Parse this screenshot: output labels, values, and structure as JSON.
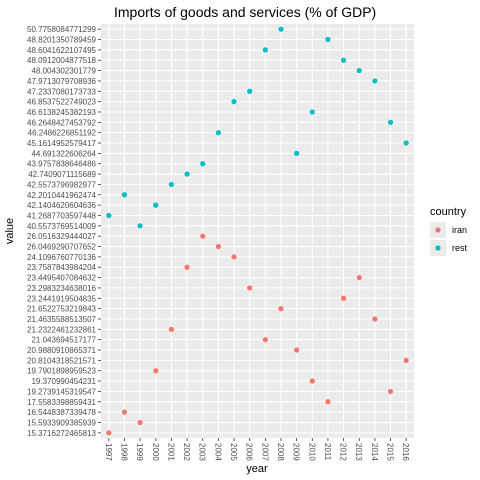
{
  "chart_data": {
    "type": "scatter",
    "title": "Imports of goods and services (% of GDP)",
    "xlabel": "year",
    "ylabel": "value",
    "y_scale": "discrete-categorical",
    "grid": true,
    "legend": {
      "title": "country",
      "placement": "right"
    },
    "x_categories": [
      "1997",
      "1998",
      "1999",
      "2000",
      "2001",
      "2002",
      "2003",
      "2004",
      "2005",
      "2006",
      "2007",
      "2008",
      "2009",
      "2010",
      "2011",
      "2012",
      "2013",
      "2014",
      "2015",
      "2016"
    ],
    "series": [
      {
        "name": "iran",
        "color": "#F8766D",
        "values": [
          "15.3716272465813",
          "16.5448387339478",
          "15.5933909385939",
          "19.7901898959523",
          "21.2322461232861",
          "23.7587843984204",
          "26.0516329444027",
          "26.0469290707652",
          "24.1096760770136",
          "23.2983234638016",
          "21.043694517177",
          "21.6522753219843",
          "20.9880910865371",
          "19.370990454231",
          "17.5583398859431",
          "23.2441919504835",
          "23.4495407084632",
          "21.4635588513507",
          "19.2739145319547",
          "20.8104318521571"
        ]
      },
      {
        "name": "rest",
        "color": "#00BFC4",
        "values": [
          "41.2687703597448",
          "42.2010441962474",
          "40.5573769514009",
          "42.1404620604636",
          "42.5573796982977",
          "42.7409071115689",
          "43.9757838646486",
          "46.2486226851192",
          "46.8537522749023",
          "47.2337080173733",
          "48.6041622107495",
          "50.7758084771299",
          "44.691322606264",
          "46.6138245382193",
          "48.8201350789459",
          "48.0912004877518",
          "48.004302301779",
          "47.9713079708936",
          "46.2648427453792",
          "45.1614952579417"
        ]
      }
    ],
    "y_tick_labels_top_to_bottom": [
      "50.7758084771299",
      "48.8201350789459",
      "48.6041622107495",
      "48.0912004877518",
      "48.004302301779",
      "47.9713079708936",
      "47.2337080173733",
      "46.8537522749023",
      "46.6138245382193",
      "46.2648427453792",
      "46.2486226851192",
      "45.1614952579417",
      "44.691322606264",
      "43.9757838646486",
      "42.7409071115689",
      "42.5573796982977",
      "42.2010441962474",
      "42.1404620604636",
      "41.2687703597448",
      "40.5573769514009",
      "26.0516329444027",
      "26.0469290707652",
      "24.1096760770136",
      "23.7587843984204",
      "23.4495407084632",
      "23.2983234638016",
      "23.2441919504835",
      "21.6522753219843",
      "21.4635588513507",
      "21.2322461232861",
      "21.043694517177",
      "20.9880910865371",
      "20.8104318521571",
      "19.7901898959523",
      "19.370990454231",
      "19.2739145319547",
      "17.5583398859431",
      "16.5448387339478",
      "15.5933909385939",
      "15.3716272465813"
    ]
  }
}
